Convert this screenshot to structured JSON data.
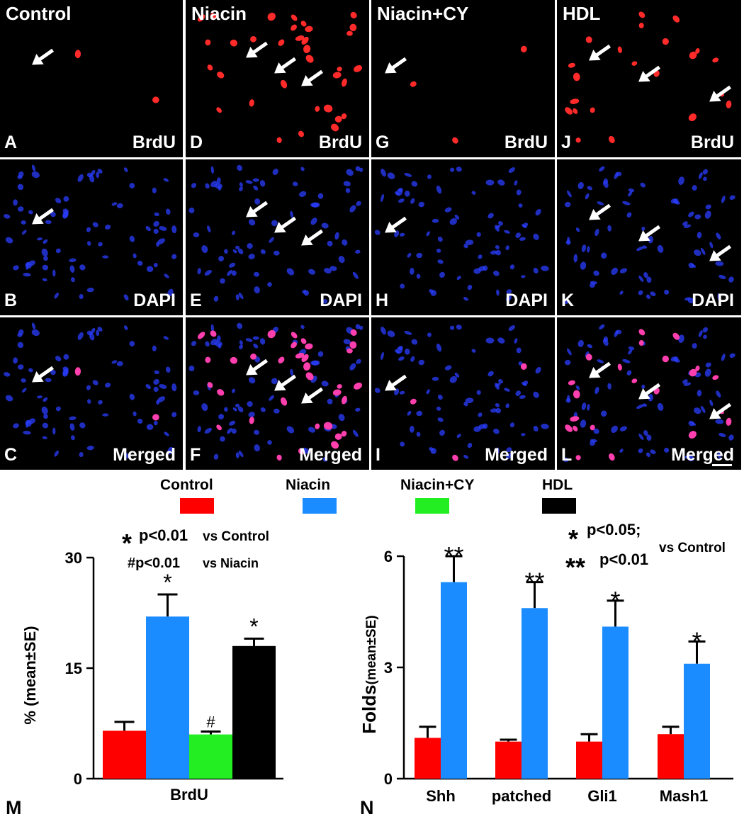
{
  "micrograph_grid": {
    "columns": [
      {
        "title": "Control",
        "rows": [
          {
            "letter": "A",
            "stain": "BrdU"
          },
          {
            "letter": "B",
            "stain": "DAPI"
          },
          {
            "letter": "C",
            "stain": "Merged"
          }
        ]
      },
      {
        "title": "Niacin",
        "rows": [
          {
            "letter": "D",
            "stain": "BrdU"
          },
          {
            "letter": "E",
            "stain": "DAPI"
          },
          {
            "letter": "F",
            "stain": "Merged"
          }
        ]
      },
      {
        "title": "Niacin+CY",
        "rows": [
          {
            "letter": "G",
            "stain": "BrdU"
          },
          {
            "letter": "H",
            "stain": "DAPI"
          },
          {
            "letter": "I",
            "stain": "Merged"
          }
        ]
      },
      {
        "title": "HDL",
        "rows": [
          {
            "letter": "J",
            "stain": "BrdU"
          },
          {
            "letter": "K",
            "stain": "DAPI"
          },
          {
            "letter": "L",
            "stain": "Merged"
          }
        ]
      }
    ],
    "colors": {
      "brdu": "#ff2a2a",
      "dapi": "#2a3dff",
      "merged": "#ff3fae"
    }
  },
  "legend": {
    "items": [
      {
        "label": "Control",
        "color": "#ff0000"
      },
      {
        "label": "Niacin",
        "color": "#1a8cff"
      },
      {
        "label": "Niacin+CY",
        "color": "#22ee22"
      },
      {
        "label": "HDL",
        "color": "#000000"
      }
    ]
  },
  "panel_m": {
    "letter": "M",
    "sig_line1_symbol": "*",
    "sig_line1_text": "p<0.01",
    "sig_line1_vs": "vs Control",
    "sig_line2_text": "#p<0.01",
    "sig_line2_vs": "vs Niacin"
  },
  "panel_n": {
    "letter": "N",
    "sig_line1_symbol": "*",
    "sig_line1_text": "p<0.05;",
    "sig_line2_symbol": "**",
    "sig_line2_text": "p<0.01",
    "sig_vs": "vs Control"
  },
  "chart_data": [
    {
      "type": "bar",
      "categories": [
        "BrdU"
      ],
      "series": [
        {
          "name": "Control",
          "values": [
            6.5
          ],
          "error": [
            1.2
          ],
          "mark": ""
        },
        {
          "name": "Niacin",
          "values": [
            22
          ],
          "error": [
            3
          ],
          "mark": "*"
        },
        {
          "name": "Niacin+CY",
          "values": [
            6
          ],
          "error": [
            0.4
          ],
          "mark": "#"
        },
        {
          "name": "HDL",
          "values": [
            18
          ],
          "error": [
            1
          ],
          "mark": "*"
        }
      ],
      "ylabel": "% (mean±SE)",
      "yticks": [
        0,
        15,
        30
      ],
      "ylim": [
        0,
        30
      ],
      "colors": [
        "#ff0000",
        "#1a8cff",
        "#22ee22",
        "#000000"
      ]
    },
    {
      "type": "bar",
      "categories": [
        "Shh",
        "patched",
        "Gli1",
        "Mash1"
      ],
      "series": [
        {
          "name": "Control",
          "values": [
            1.1,
            1.0,
            1.0,
            1.2
          ],
          "error": [
            0.3,
            0.05,
            0.2,
            0.2
          ],
          "marks": [
            "",
            "",
            "",
            ""
          ]
        },
        {
          "name": "Niacin",
          "values": [
            5.3,
            4.6,
            4.1,
            3.1
          ],
          "error": [
            0.7,
            0.7,
            0.7,
            0.6
          ],
          "marks": [
            "**",
            "**",
            "*",
            "*"
          ]
        }
      ],
      "ylabel_main": "Folds",
      "ylabel_sub": "(mean±SE)",
      "yticks": [
        0,
        3,
        6
      ],
      "ylim": [
        0,
        6
      ],
      "colors": [
        "#ff0000",
        "#1a8cff"
      ]
    }
  ]
}
